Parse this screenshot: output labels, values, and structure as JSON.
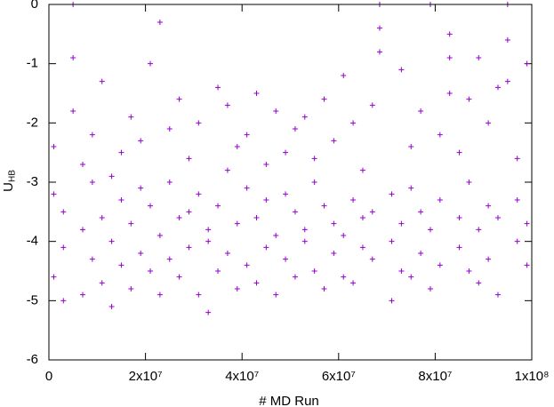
{
  "chart_data": {
    "type": "scatter",
    "xlabel": "# MD Run",
    "ylabel": "U",
    "ylabel_subscript": "HB",
    "xlim": [
      0,
      100000000.0
    ],
    "ylim": [
      -6,
      0
    ],
    "xticks": [
      0,
      {
        "value": 20000000.0,
        "label": "2x10⁷"
      },
      {
        "value": 40000000.0,
        "label": "4x10⁷"
      },
      {
        "value": 60000000.0,
        "label": "6x10⁷"
      },
      {
        "value": 80000000.0,
        "label": "8x10⁷"
      },
      {
        "value": 100000000.0,
        "label": "1x10⁸"
      }
    ],
    "yticks": [
      0,
      -1,
      -2,
      -3,
      -4,
      -5,
      -6
    ],
    "marker": "+",
    "series": [
      {
        "color": "#9400d3",
        "x": [
          1000000.0,
          1000000.0,
          1000000.0,
          3000000.0,
          3000000.0,
          3000000.0,
          5000000.0,
          5000000.0,
          5000000.0,
          7000000.0,
          7000000.0,
          7000000.0,
          9000000.0,
          9000000.0,
          9000000.0,
          11000000.0,
          11000000.0,
          11000000.0,
          13000000.0,
          13000000.0,
          13000000.0,
          15000000.0,
          15000000.0,
          15000000.0,
          17000000.0,
          17000000.0,
          17000000.0,
          19000000.0,
          19000000.0,
          19000000.0,
          21000000.0,
          21000000.0,
          21000000.0,
          23000000.0,
          23000000.0,
          23000000.0,
          25000000.0,
          25000000.0,
          25000000.0,
          27000000.0,
          27000000.0,
          27000000.0,
          29000000.0,
          29000000.0,
          29000000.0,
          31000000.0,
          31000000.0,
          31000000.0,
          33000000.0,
          33000000.0,
          33000000.0,
          35000000.0,
          35000000.0,
          35000000.0,
          37000000.0,
          37000000.0,
          37000000.0,
          39000000.0,
          39000000.0,
          39000000.0,
          41000000.0,
          41000000.0,
          41000000.0,
          43000000.0,
          43000000.0,
          43000000.0,
          45000000.0,
          45000000.0,
          45000000.0,
          47000000.0,
          47000000.0,
          47000000.0,
          49000000.0,
          49000000.0,
          49000000.0,
          51000000.0,
          51000000.0,
          51000000.0,
          53000000.0,
          53000000.0,
          53000000.0,
          55000000.0,
          55000000.0,
          55000000.0,
          57000000.0,
          57000000.0,
          57000000.0,
          59000000.0,
          59000000.0,
          59000000.0,
          61000000.0,
          61000000.0,
          61000000.0,
          63000000.0,
          63000000.0,
          63000000.0,
          65000000.0,
          65000000.0,
          65000000.0,
          67000000.0,
          67000000.0,
          67000000.0,
          68500000.0,
          68500000.0,
          68500000.0,
          71000000.0,
          71000000.0,
          71000000.0,
          73000000.0,
          73000000.0,
          73000000.0,
          75000000.0,
          75000000.0,
          75000000.0,
          77000000.0,
          77000000.0,
          77000000.0,
          79000000.0,
          79000000.0,
          79000000.0,
          81000000.0,
          81000000.0,
          81000000.0,
          83000000.0,
          83000000.0,
          83000000.0,
          85000000.0,
          85000000.0,
          85000000.0,
          87000000.0,
          87000000.0,
          87000000.0,
          89000000.0,
          89000000.0,
          89000000.0,
          91000000.0,
          91000000.0,
          91000000.0,
          93000000.0,
          93000000.0,
          93000000.0,
          95000000.0,
          95000000.0,
          95000000.0,
          97000000.0,
          97000000.0,
          97000000.0,
          99000000.0,
          99000000.0,
          99000000.0
        ],
        "values": [
          -3.2,
          -4.6,
          -2.4,
          -4.1,
          -3.5,
          -5.0,
          0,
          -0.9,
          -1.8,
          -3.8,
          -4.9,
          -2.7,
          -4.3,
          -3.0,
          -2.2,
          -3.6,
          -4.7,
          -1.3,
          -4.0,
          -2.9,
          -5.1,
          -3.3,
          -4.4,
          -2.5,
          -4.8,
          -3.7,
          -1.9,
          -3.1,
          -4.2,
          -2.3,
          -4.5,
          -3.4,
          -1.0,
          -3.9,
          -4.9,
          -0.3,
          -3.0,
          -4.3,
          -2.1,
          -4.6,
          -3.6,
          -1.6,
          -3.5,
          -4.1,
          -2.6,
          -4.9,
          -3.2,
          -2.0,
          -4.0,
          -3.8,
          -5.2,
          -3.4,
          -4.5,
          -1.4,
          -4.2,
          -2.8,
          -1.7,
          -3.7,
          -4.8,
          -2.4,
          -4.4,
          -3.1,
          -2.2,
          -3.6,
          -4.7,
          -1.5,
          -4.1,
          -3.3,
          -2.7,
          -4.9,
          -3.9,
          -1.8,
          -3.2,
          -4.3,
          -2.5,
          -4.6,
          -3.5,
          -2.1,
          -3.8,
          -4.0,
          -1.9,
          -4.5,
          -3.0,
          -2.6,
          -3.4,
          -4.8,
          -1.6,
          -4.2,
          -3.7,
          -2.3,
          -3.9,
          -4.6,
          -1.2,
          -4.7,
          -3.3,
          -2.0,
          -3.6,
          -4.1,
          -2.8,
          -4.3,
          -3.5,
          -1.7,
          0,
          -0.8,
          -0.4,
          -4.0,
          -3.2,
          -5.0,
          -3.7,
          -4.5,
          -1.1,
          -4.6,
          -3.1,
          -2.4,
          -3.5,
          -4.2,
          -1.8,
          -4.8,
          -3.8,
          0,
          -3.3,
          -4.4,
          -2.2,
          -0.9,
          -0.5,
          -1.5,
          -4.1,
          -3.6,
          -2.5,
          -4.5,
          -3.0,
          -1.6,
          -3.8,
          -4.7,
          -0.9,
          -4.3,
          -3.4,
          -2.0,
          -3.6,
          -4.9,
          -1.4,
          0,
          -0.6,
          -1.3,
          -4.0,
          -3.3,
          -2.6,
          -4.4,
          -3.7,
          -1.0
        ]
      }
    ]
  }
}
